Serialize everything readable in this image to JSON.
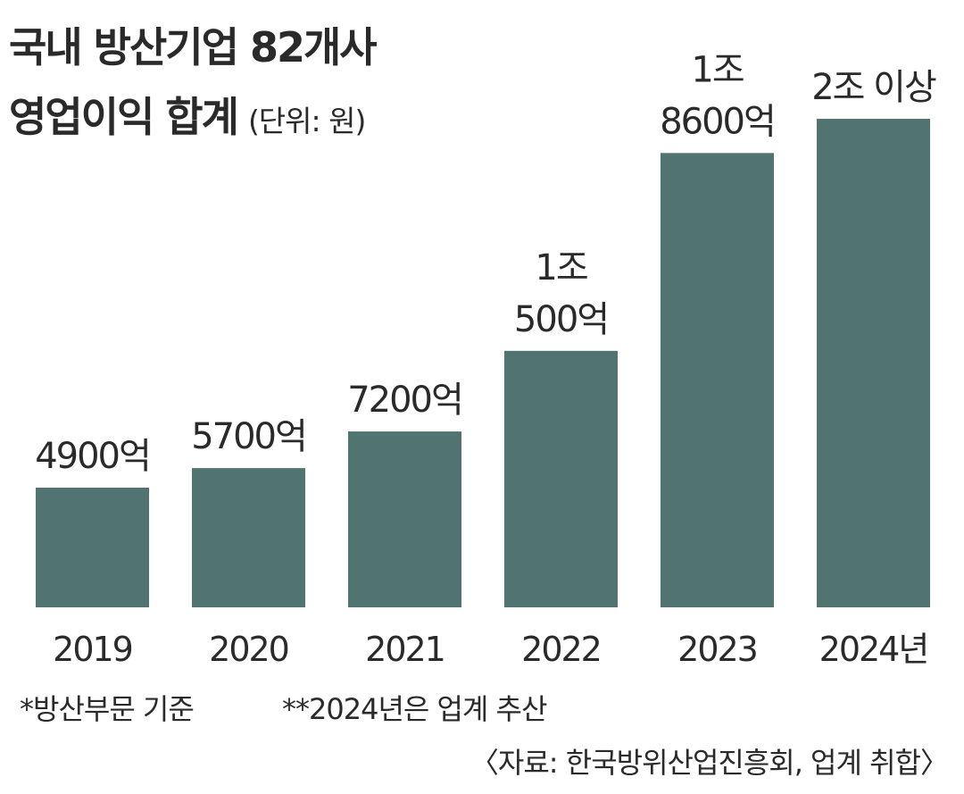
{
  "title_line1": "국내 방산기업 82개사",
  "title_line2": "영업이익 합계",
  "unit": "(단위: 원)",
  "footnote1": "*방산부문 기준",
  "footnote2": "**2024년은 업계 추산",
  "source": "〈자료: 한국방위산업진흥회, 업계 취합〉",
  "bar_color": "#527470",
  "chart_data": {
    "type": "bar",
    "title": "국내 방산기업 82개사 영업이익 합계",
    "unit": "(단위: 원)",
    "categories": [
      "2019",
      "2020",
      "2021",
      "2022",
      "2023",
      "2024년"
    ],
    "values": [
      4900,
      5700,
      7200,
      10500,
      18600,
      20000
    ],
    "value_unit": "억원",
    "data_labels": [
      [
        "4900억"
      ],
      [
        "5700억"
      ],
      [
        "7200억"
      ],
      [
        "1조",
        "500억"
      ],
      [
        "1조",
        "8600억"
      ],
      [
        "2조 이상"
      ]
    ],
    "ylim": [
      0,
      21500
    ],
    "grid": false,
    "legend": "none"
  }
}
